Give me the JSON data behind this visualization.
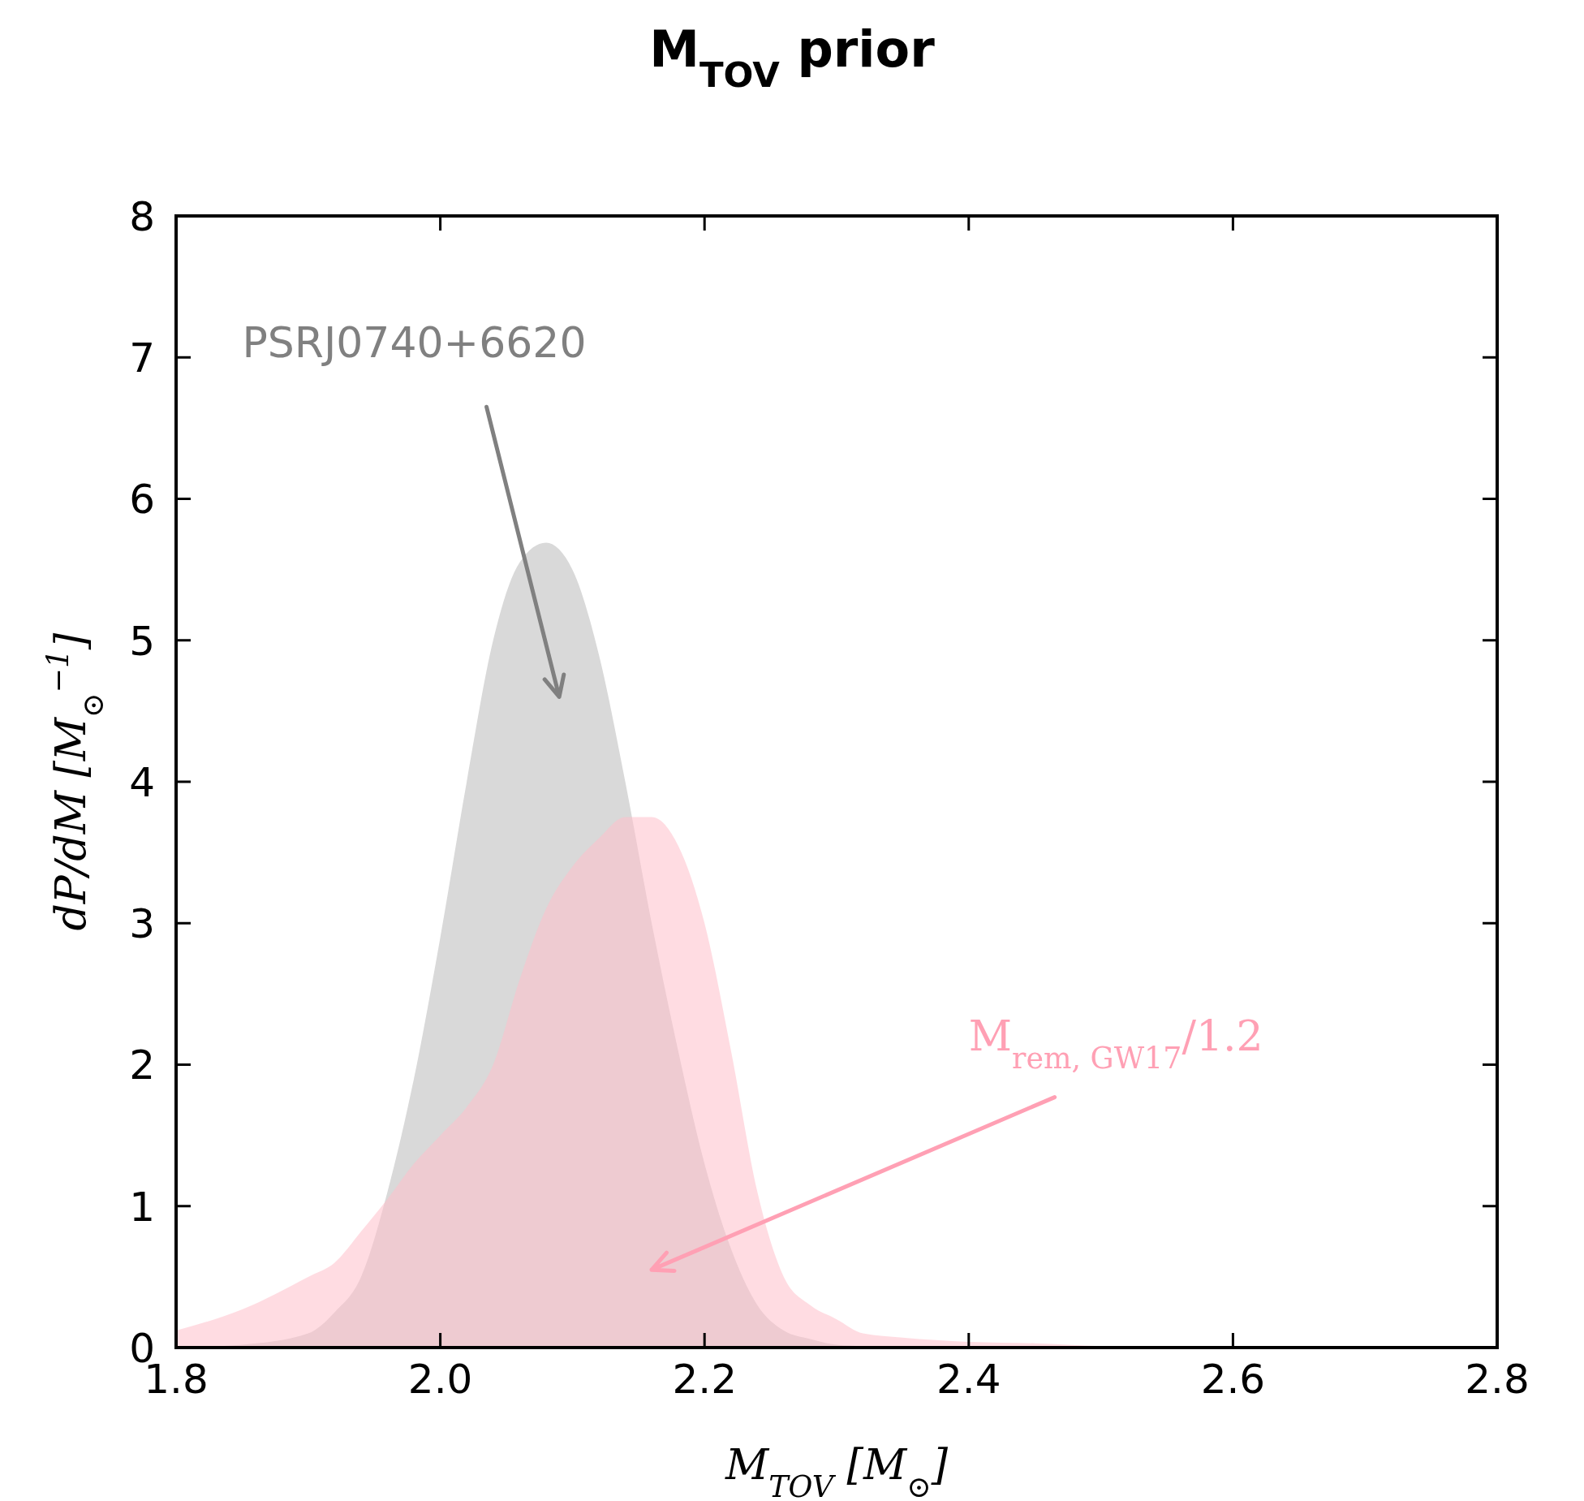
{
  "chart_data": {
    "type": "area",
    "title": "M$_{TOV}$ prior",
    "xlabel": "M$_{TOV}$ [M$_{⊙}$]",
    "ylabel": "dP/dM [M$_{⊙}$$^{−1}$]",
    "x": [
      1.8,
      1.85,
      1.9,
      1.92,
      1.94,
      1.96,
      1.98,
      2.0,
      2.02,
      2.04,
      2.06,
      2.08,
      2.1,
      2.12,
      2.14,
      2.16,
      2.18,
      2.2,
      2.22,
      2.24,
      2.26,
      2.28,
      2.3,
      2.32,
      2.35,
      2.4,
      2.45,
      2.5,
      2.6,
      2.8
    ],
    "series": [
      {
        "color": "#d9d9d9",
        "values": [
          0,
          0.02,
          0.1,
          0.25,
          0.5,
          1.1,
          1.9,
          2.9,
          4.0,
          5.0,
          5.55,
          5.69,
          5.5,
          4.9,
          4.0,
          3.0,
          2.1,
          1.3,
          0.7,
          0.3,
          0.12,
          0.06,
          0.02,
          0.01,
          0,
          0,
          0,
          0,
          0,
          0
        ]
      },
      {
        "color": "#ffc0cb",
        "values": [
          0.12,
          0.27,
          0.5,
          0.6,
          0.82,
          1.05,
          1.3,
          1.5,
          1.7,
          2.0,
          2.6,
          3.1,
          3.4,
          3.6,
          3.75,
          3.75,
          3.55,
          3.0,
          2.1,
          1.1,
          0.5,
          0.3,
          0.2,
          0.1,
          0.07,
          0.04,
          0.03,
          0.01,
          0,
          0
        ]
      }
    ],
    "xlim": [
      1.8,
      2.8
    ],
    "xticks": [
      1.8,
      {
        "value": 2,
        "label": "2.0"
      },
      2.2,
      2.4,
      2.6,
      2.8
    ],
    "ylim": [
      0,
      8
    ],
    "yticks": [
      0,
      1,
      2,
      3,
      4,
      5,
      6,
      7,
      8
    ],
    "grid": false,
    "legend": false,
    "annotations": [
      "PSRJ0740+6620",
      "M$_{rem, GW17}$/1.2"
    ]
  }
}
